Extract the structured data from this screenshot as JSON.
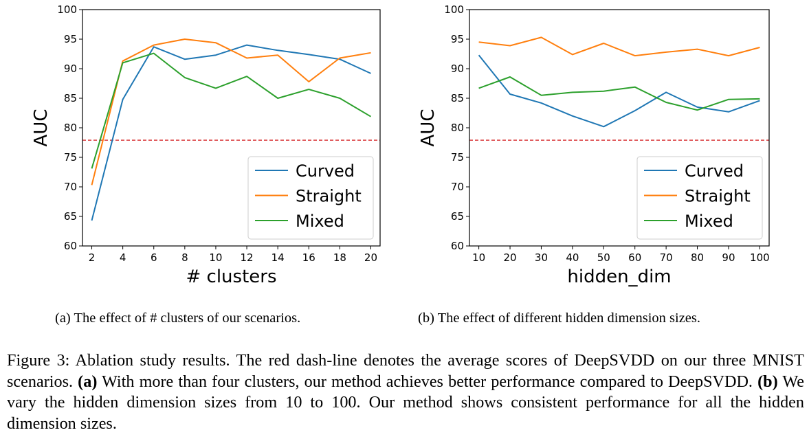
{
  "colors": {
    "Curved": "#1f77b4",
    "Straight": "#ff7f0e",
    "Mixed": "#2ca02c",
    "baseline": "#d62728"
  },
  "chart_data": [
    {
      "type": "line",
      "xlabel": "# clusters",
      "ylabel": "AUC",
      "x": [
        2,
        4,
        6,
        8,
        10,
        12,
        14,
        16,
        18,
        20
      ],
      "xticks": [
        "2",
        "4",
        "6",
        "8",
        "10",
        "12",
        "14",
        "16",
        "18",
        "20"
      ],
      "xlim": [
        1.4,
        20.6
      ],
      "ylim": [
        60,
        100
      ],
      "yticks": [
        "60",
        "65",
        "70",
        "75",
        "80",
        "85",
        "90",
        "95",
        "100"
      ],
      "baseline": 77.9,
      "legend_position": "lower right",
      "series": [
        {
          "name": "Curved",
          "values": [
            64.3,
            84.8,
            93.7,
            91.6,
            92.3,
            94.0,
            93.1,
            92.4,
            91.6,
            89.2
          ]
        },
        {
          "name": "Straight",
          "values": [
            70.3,
            91.3,
            94.0,
            95.0,
            94.4,
            91.8,
            92.3,
            87.8,
            91.8,
            92.7
          ]
        },
        {
          "name": "Mixed",
          "values": [
            73.1,
            91.0,
            92.6,
            88.5,
            86.7,
            88.7,
            85.0,
            86.5,
            85.0,
            81.9
          ]
        }
      ]
    },
    {
      "type": "line",
      "xlabel": "hidden_dim",
      "ylabel": "AUC",
      "x": [
        10,
        20,
        30,
        40,
        50,
        60,
        70,
        80,
        90,
        100
      ],
      "xticks": [
        "10",
        "20",
        "30",
        "40",
        "50",
        "60",
        "70",
        "80",
        "90",
        "100"
      ],
      "xlim": [
        7,
        103
      ],
      "ylim": [
        60,
        100
      ],
      "yticks": [
        "60",
        "65",
        "70",
        "75",
        "80",
        "85",
        "90",
        "95",
        "100"
      ],
      "baseline": 77.9,
      "legend_position": "lower right",
      "series": [
        {
          "name": "Curved",
          "values": [
            92.3,
            85.7,
            84.2,
            82.0,
            80.2,
            82.9,
            86.0,
            83.5,
            82.7,
            84.6
          ]
        },
        {
          "name": "Straight",
          "values": [
            94.5,
            93.9,
            95.3,
            92.4,
            94.3,
            92.2,
            92.8,
            93.3,
            92.2,
            93.6
          ]
        },
        {
          "name": "Mixed",
          "values": [
            86.7,
            88.6,
            85.5,
            86.0,
            86.2,
            86.9,
            84.3,
            83.0,
            84.8,
            84.9
          ]
        }
      ]
    }
  ],
  "subcaptions": [
    "(a) The effect of # clusters of our scenarios.",
    "(b) The effect of different hidden dimension sizes."
  ],
  "caption": {
    "p1": "Figure 3: Ablation study results. The red dash-line denotes the average scores of DeepSVDD on our three MNIST scenarios. ",
    "a_label": "(a)",
    "p2": " With more than four clusters, our method achieves better performance compared to DeepSVDD. ",
    "b_label": "(b)",
    "p3": " We vary the hidden dimension sizes from 10 to 100. Our method shows consistent performance for all the hidden dimension sizes."
  }
}
